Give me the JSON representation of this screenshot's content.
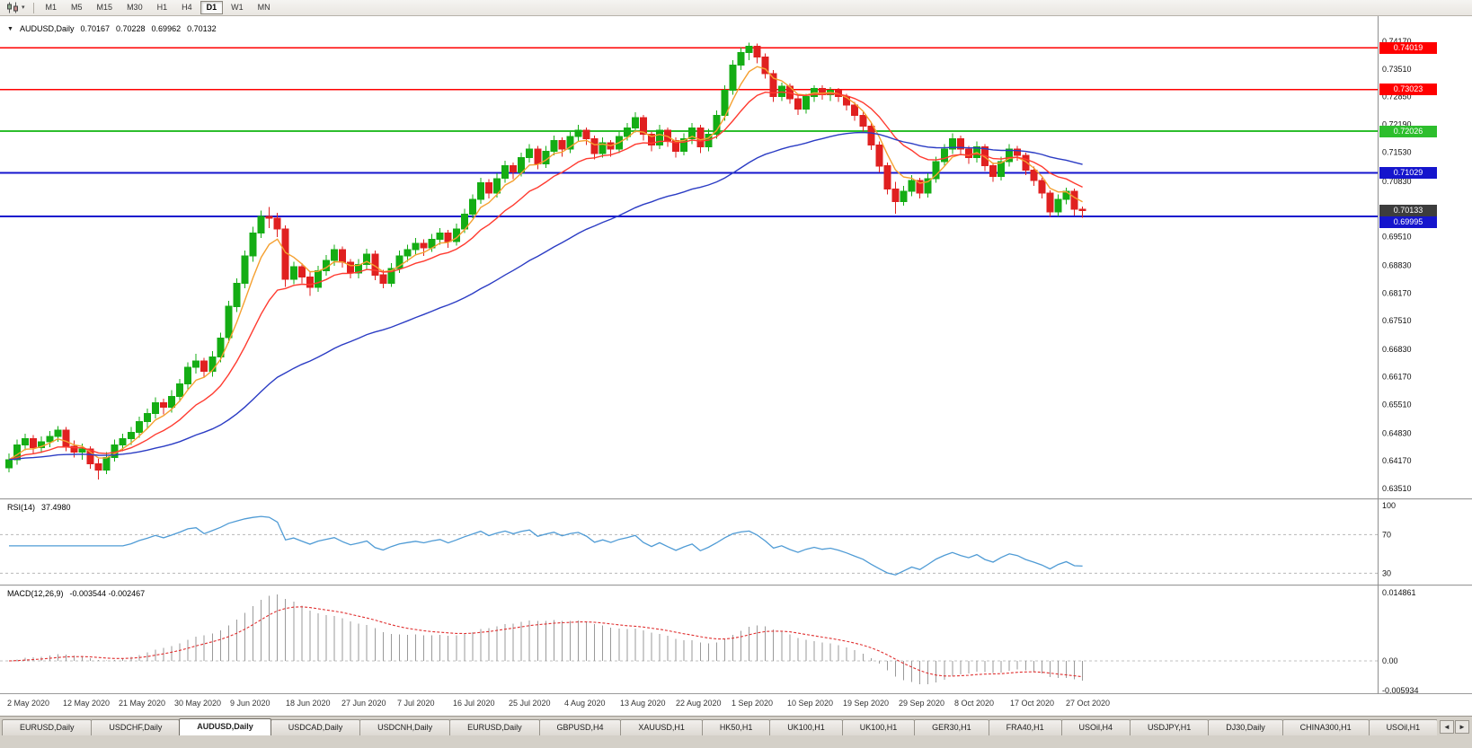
{
  "toolbar": {
    "timeframes": [
      {
        "label": "M1",
        "active": false
      },
      {
        "label": "M5",
        "active": false
      },
      {
        "label": "M15",
        "active": false
      },
      {
        "label": "M30",
        "active": false
      },
      {
        "label": "H1",
        "active": false
      },
      {
        "label": "H4",
        "active": false
      },
      {
        "label": "D1",
        "active": true
      },
      {
        "label": "W1",
        "active": false
      },
      {
        "label": "MN",
        "active": false
      }
    ],
    "chart_icon": "candlestick-chart-icon",
    "dropdown_caret": "▾"
  },
  "header": {
    "dropdown_icon": "▼",
    "symbol": "AUDUSD,Daily",
    "open": "0.70167",
    "high": "0.70228",
    "low": "0.69962",
    "close": "0.70132"
  },
  "indicators": {
    "rsi_label": "RSI(14)",
    "rsi_value": "37.4980",
    "macd_label": "MACD(12,26,9)",
    "macd_values": "-0.003544 -0.002467"
  },
  "chart_data": {
    "type": "candlestick",
    "symbol": "AUDUSD",
    "timeframe": "Daily",
    "ylim": [
      0.6351,
      0.7417
    ],
    "price_axis_labels": [
      "0.74170",
      "0.73510",
      "0.72850",
      "0.72190",
      "0.71530",
      "0.70830",
      "0.70170",
      "0.69510",
      "0.68830",
      "0.68170",
      "0.67510",
      "0.66830",
      "0.66170",
      "0.65510",
      "0.64830",
      "0.64170",
      "0.63510"
    ],
    "time_labels": [
      "2 May 2020",
      "12 May 2020",
      "21 May 2020",
      "30 May 2020",
      "9 Jun 2020",
      "18 Jun 2020",
      "27 Jun 2020",
      "7 Jul 2020",
      "16 Jul 2020",
      "25 Jul 2020",
      "4 Aug 2020",
      "13 Aug 2020",
      "22 Aug 2020",
      "1 Sep 2020",
      "10 Sep 2020",
      "19 Sep 2020",
      "29 Sep 2020",
      "8 Oct 2020",
      "17 Oct 2020",
      "27 Oct 2020"
    ],
    "candle_colors": {
      "bull": "#14ad14",
      "bear": "#e02020"
    },
    "moving_averages": [
      {
        "period": 5,
        "color": "#f5a030",
        "name": "ma-fast"
      },
      {
        "period": 13,
        "color": "#ff3b30",
        "name": "ma-medium"
      },
      {
        "period": 45,
        "color": "#2b3cc4",
        "name": "ma-slow"
      }
    ],
    "horizontal_lines": [
      {
        "price": 0.74019,
        "label": "0.74019",
        "color": "#ff0000",
        "width": 1.5
      },
      {
        "price": 0.73023,
        "label": "0.73023",
        "color": "#ff0000",
        "width": 1.5
      },
      {
        "price": 0.72026,
        "label": "0.72026",
        "color": "#2dbe2d",
        "width": 2
      },
      {
        "price": 0.71029,
        "label": "0.71029",
        "color": "#1515cd",
        "width": 2
      },
      {
        "price": 0.69995,
        "label": "0.69995",
        "color": "#1515cd",
        "width": 2
      }
    ],
    "current_price": {
      "value": 0.70133,
      "label": "0.70133",
      "box_color": "#3d3d3d"
    },
    "rsi": {
      "period": 14,
      "current": 37.498,
      "levels": [
        100,
        70,
        30
      ],
      "color": "#4f9bd5"
    },
    "macd": {
      "fast": 12,
      "slow": 26,
      "signal": 9,
      "macd_value": -0.003544,
      "signal_value": -0.002467,
      "axis_labels": [
        "0.014861",
        "0.00",
        "-0.005934"
      ],
      "histogram_color": "#9a9a9a",
      "signal_color": "#e03030"
    },
    "ohlc": [
      [
        0.64,
        0.6435,
        0.639,
        0.642
      ],
      [
        0.642,
        0.6468,
        0.6408,
        0.6455
      ],
      [
        0.6455,
        0.6482,
        0.6442,
        0.647
      ],
      [
        0.647,
        0.6478,
        0.6435,
        0.6448
      ],
      [
        0.6448,
        0.6475,
        0.6436,
        0.6462
      ],
      [
        0.6462,
        0.6488,
        0.645,
        0.6475
      ],
      [
        0.6475,
        0.65,
        0.6462,
        0.649
      ],
      [
        0.649,
        0.6498,
        0.644,
        0.6452
      ],
      [
        0.6452,
        0.6465,
        0.6425,
        0.6438
      ],
      [
        0.6438,
        0.6458,
        0.642,
        0.6445
      ],
      [
        0.6445,
        0.6452,
        0.6398,
        0.641
      ],
      [
        0.641,
        0.6422,
        0.6372,
        0.6395
      ],
      [
        0.6395,
        0.6438,
        0.6385,
        0.6425
      ],
      [
        0.6425,
        0.6468,
        0.6415,
        0.6455
      ],
      [
        0.6455,
        0.6482,
        0.644,
        0.647
      ],
      [
        0.647,
        0.6498,
        0.6455,
        0.6485
      ],
      [
        0.6485,
        0.6522,
        0.6472,
        0.651
      ],
      [
        0.651,
        0.6542,
        0.6495,
        0.653
      ],
      [
        0.653,
        0.6568,
        0.6518,
        0.6555
      ],
      [
        0.6555,
        0.6565,
        0.6528,
        0.6545
      ],
      [
        0.6545,
        0.6585,
        0.6532,
        0.657
      ],
      [
        0.657,
        0.6612,
        0.6558,
        0.66
      ],
      [
        0.66,
        0.6652,
        0.6588,
        0.664
      ],
      [
        0.664,
        0.6672,
        0.6625,
        0.6655
      ],
      [
        0.6655,
        0.6662,
        0.6615,
        0.663
      ],
      [
        0.663,
        0.6678,
        0.6618,
        0.6665
      ],
      [
        0.6665,
        0.6722,
        0.6652,
        0.671
      ],
      [
        0.671,
        0.6798,
        0.6698,
        0.6785
      ],
      [
        0.6785,
        0.6852,
        0.6772,
        0.684
      ],
      [
        0.684,
        0.6918,
        0.6828,
        0.6905
      ],
      [
        0.6905,
        0.6975,
        0.6892,
        0.696
      ],
      [
        0.696,
        0.7013,
        0.6948,
        0.7
      ],
      [
        0.7,
        0.7022,
        0.6972,
        0.6995
      ],
      [
        0.6995,
        0.7008,
        0.695,
        0.697
      ],
      [
        0.697,
        0.6978,
        0.6832,
        0.685
      ],
      [
        0.685,
        0.6892,
        0.6838,
        0.688
      ],
      [
        0.688,
        0.6888,
        0.684,
        0.6855
      ],
      [
        0.6855,
        0.6868,
        0.681,
        0.683
      ],
      [
        0.683,
        0.6882,
        0.682,
        0.687
      ],
      [
        0.687,
        0.6908,
        0.6858,
        0.6895
      ],
      [
        0.6895,
        0.6932,
        0.6882,
        0.692
      ],
      [
        0.692,
        0.6928,
        0.6878,
        0.689
      ],
      [
        0.689,
        0.6898,
        0.6852,
        0.6865
      ],
      [
        0.6865,
        0.6898,
        0.6852,
        0.6885
      ],
      [
        0.6885,
        0.6922,
        0.6872,
        0.691
      ],
      [
        0.691,
        0.6918,
        0.6848,
        0.686
      ],
      [
        0.686,
        0.6872,
        0.6828,
        0.684
      ],
      [
        0.684,
        0.6888,
        0.6832,
        0.6875
      ],
      [
        0.6875,
        0.6918,
        0.6865,
        0.6905
      ],
      [
        0.6905,
        0.6932,
        0.6892,
        0.692
      ],
      [
        0.692,
        0.6948,
        0.6908,
        0.6935
      ],
      [
        0.6935,
        0.6945,
        0.6905,
        0.6925
      ],
      [
        0.6925,
        0.6958,
        0.6915,
        0.6945
      ],
      [
        0.6945,
        0.6972,
        0.6932,
        0.696
      ],
      [
        0.696,
        0.6968,
        0.6925,
        0.694
      ],
      [
        0.694,
        0.6982,
        0.693,
        0.697
      ],
      [
        0.697,
        0.7018,
        0.696,
        0.7005
      ],
      [
        0.7005,
        0.7052,
        0.6995,
        0.704
      ],
      [
        0.704,
        0.7092,
        0.703,
        0.708
      ],
      [
        0.708,
        0.7088,
        0.7042,
        0.7055
      ],
      [
        0.7055,
        0.7102,
        0.7045,
        0.709
      ],
      [
        0.709,
        0.7132,
        0.708,
        0.712
      ],
      [
        0.712,
        0.7128,
        0.7088,
        0.7105
      ],
      [
        0.7105,
        0.7152,
        0.7095,
        0.714
      ],
      [
        0.714,
        0.7172,
        0.7128,
        0.716
      ],
      [
        0.716,
        0.7168,
        0.7112,
        0.7125
      ],
      [
        0.7125,
        0.7168,
        0.7115,
        0.7155
      ],
      [
        0.7155,
        0.7192,
        0.7145,
        0.718
      ],
      [
        0.718,
        0.7188,
        0.7142,
        0.716
      ],
      [
        0.716,
        0.7202,
        0.715,
        0.719
      ],
      [
        0.719,
        0.7218,
        0.7178,
        0.7205
      ],
      [
        0.7205,
        0.7212,
        0.717,
        0.7185
      ],
      [
        0.7185,
        0.7192,
        0.7135,
        0.715
      ],
      [
        0.715,
        0.7188,
        0.714,
        0.7175
      ],
      [
        0.7175,
        0.7182,
        0.7142,
        0.716
      ],
      [
        0.716,
        0.7202,
        0.715,
        0.719
      ],
      [
        0.719,
        0.7222,
        0.718,
        0.721
      ],
      [
        0.721,
        0.7248,
        0.72,
        0.7235
      ],
      [
        0.7235,
        0.7242,
        0.718,
        0.7195
      ],
      [
        0.7195,
        0.7202,
        0.7155,
        0.717
      ],
      [
        0.717,
        0.7218,
        0.716,
        0.7205
      ],
      [
        0.7205,
        0.7212,
        0.7165,
        0.718
      ],
      [
        0.718,
        0.7188,
        0.714,
        0.7155
      ],
      [
        0.7155,
        0.7198,
        0.7145,
        0.7185
      ],
      [
        0.7185,
        0.7222,
        0.7172,
        0.721
      ],
      [
        0.721,
        0.7218,
        0.715,
        0.7165
      ],
      [
        0.7165,
        0.7208,
        0.7155,
        0.7195
      ],
      [
        0.7195,
        0.7252,
        0.7185,
        0.724
      ],
      [
        0.724,
        0.7312,
        0.7228,
        0.73
      ],
      [
        0.73,
        0.7372,
        0.729,
        0.736
      ],
      [
        0.736,
        0.7402,
        0.7348,
        0.739
      ],
      [
        0.739,
        0.7414,
        0.7372,
        0.7405
      ],
      [
        0.7405,
        0.7412,
        0.7365,
        0.738
      ],
      [
        0.738,
        0.7388,
        0.7328,
        0.734
      ],
      [
        0.734,
        0.7348,
        0.7272,
        0.7285
      ],
      [
        0.7285,
        0.7318,
        0.7275,
        0.731
      ],
      [
        0.731,
        0.7316,
        0.7268,
        0.728
      ],
      [
        0.728,
        0.7288,
        0.7242,
        0.7255
      ],
      [
        0.7255,
        0.7292,
        0.7245,
        0.7285
      ],
      [
        0.7285,
        0.7312,
        0.7272,
        0.7305
      ],
      [
        0.7305,
        0.7312,
        0.7278,
        0.729
      ],
      [
        0.729,
        0.7308,
        0.7275,
        0.73
      ],
      [
        0.73,
        0.7306,
        0.7272,
        0.7285
      ],
      [
        0.7285,
        0.7292,
        0.7252,
        0.7265
      ],
      [
        0.7265,
        0.7272,
        0.7228,
        0.724
      ],
      [
        0.724,
        0.7248,
        0.7202,
        0.7215
      ],
      [
        0.7215,
        0.7222,
        0.7158,
        0.717
      ],
      [
        0.717,
        0.7178,
        0.7105,
        0.712
      ],
      [
        0.712,
        0.7128,
        0.7052,
        0.7065
      ],
      [
        0.7065,
        0.7082,
        0.7006,
        0.7035
      ],
      [
        0.7035,
        0.7072,
        0.7025,
        0.706
      ],
      [
        0.706,
        0.7098,
        0.7048,
        0.7085
      ],
      [
        0.7085,
        0.7092,
        0.7042,
        0.7055
      ],
      [
        0.7055,
        0.7102,
        0.7045,
        0.709
      ],
      [
        0.709,
        0.7142,
        0.708,
        0.713
      ],
      [
        0.713,
        0.7172,
        0.7118,
        0.716
      ],
      [
        0.716,
        0.7198,
        0.7148,
        0.7185
      ],
      [
        0.7185,
        0.7192,
        0.7148,
        0.716
      ],
      [
        0.716,
        0.7168,
        0.7125,
        0.714
      ],
      [
        0.714,
        0.7178,
        0.7128,
        0.7165
      ],
      [
        0.7165,
        0.7172,
        0.7108,
        0.712
      ],
      [
        0.712,
        0.7128,
        0.7082,
        0.7095
      ],
      [
        0.7095,
        0.7142,
        0.7085,
        0.713
      ],
      [
        0.713,
        0.7172,
        0.7118,
        0.716
      ],
      [
        0.716,
        0.7168,
        0.7132,
        0.7145
      ],
      [
        0.7145,
        0.7152,
        0.7098,
        0.711
      ],
      [
        0.711,
        0.7118,
        0.7072,
        0.7085
      ],
      [
        0.7085,
        0.7092,
        0.7042,
        0.7055
      ],
      [
        0.7055,
        0.7062,
        0.6998,
        0.701
      ],
      [
        0.701,
        0.7052,
        0.7,
        0.704
      ],
      [
        0.704,
        0.7068,
        0.7028,
        0.706
      ],
      [
        0.706,
        0.7066,
        0.7002,
        0.7017
      ],
      [
        0.70167,
        0.70228,
        0.69962,
        0.70132
      ]
    ]
  },
  "tabs": {
    "scroll_left": "◄",
    "scroll_right": "►",
    "items": [
      {
        "label": "EURUSD,Daily",
        "active": false
      },
      {
        "label": "USDCHF,Daily",
        "active": false
      },
      {
        "label": "AUDUSD,Daily",
        "active": true
      },
      {
        "label": "USDCAD,Daily",
        "active": false
      },
      {
        "label": "USDCNH,Daily",
        "active": false
      },
      {
        "label": "EURUSD,Daily",
        "active": false
      },
      {
        "label": "GBPUSD,H4",
        "active": false
      },
      {
        "label": "XAUUSD,H1",
        "active": false
      },
      {
        "label": "HK50,H1",
        "active": false
      },
      {
        "label": "UK100,H1",
        "active": false
      },
      {
        "label": "UK100,H1",
        "active": false
      },
      {
        "label": "GER30,H1",
        "active": false
      },
      {
        "label": "FRA40,H1",
        "active": false
      },
      {
        "label": "USOil,H4",
        "active": false
      },
      {
        "label": "USDJPY,H1",
        "active": false
      },
      {
        "label": "DJ30,Daily",
        "active": false
      },
      {
        "label": "CHINA300,H1",
        "active": false
      },
      {
        "label": "USOil,H1",
        "active": false
      }
    ]
  }
}
